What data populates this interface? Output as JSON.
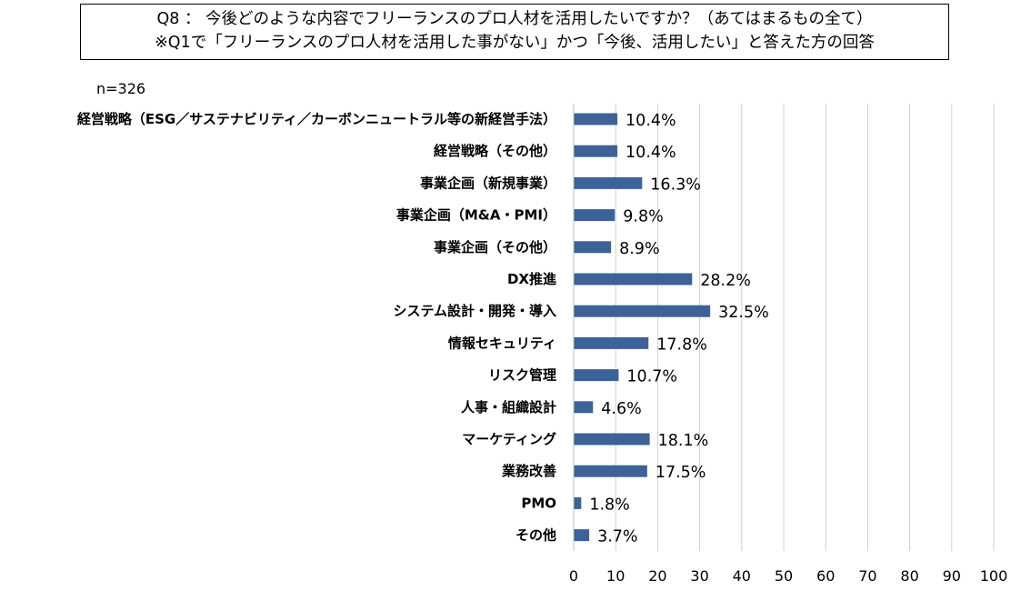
{
  "title": {
    "line1": "Q8 ： 今後どのような内容でフリーランスのプロ人材を活用したいですか？（あてはまるもの全て）",
    "line2": "※Q1で「フリーランスのプロ人材を活用した事がない」かつ「今後、活用したい」と答えた方の回答"
  },
  "sample_size": "n=326",
  "chart_data": {
    "type": "bar",
    "orientation": "horizontal",
    "categories": [
      "経営戦略（ESG／サステナビリティ／カーボンニュートラル等の新経営手法）",
      "経営戦略（その他）",
      "事業企画（新規事業）",
      "事業企画（M&A・PMI）",
      "事業企画（その他）",
      "DX推進",
      "システム設計・開発・導入",
      "情報セキュリティ",
      "リスク管理",
      "人事・組織設計",
      "マーケティング",
      "業務改善",
      "PMO",
      "その他"
    ],
    "values": [
      10.4,
      10.4,
      16.3,
      9.8,
      8.9,
      28.2,
      32.5,
      17.8,
      10.7,
      4.6,
      18.1,
      17.5,
      1.8,
      3.7
    ],
    "value_labels": [
      "10.4%",
      "10.4%",
      "16.3%",
      "9.8%",
      "8.9%",
      "28.2%",
      "32.5%",
      "17.8%",
      "10.7%",
      "4.6%",
      "18.1%",
      "17.5%",
      "1.8%",
      "3.7%"
    ],
    "xlim": [
      0,
      100
    ],
    "xticks": [
      0,
      10,
      20,
      30,
      40,
      50,
      60,
      70,
      80,
      90,
      100
    ],
    "grid": true,
    "bar_color": "#3d6396",
    "grid_color": "#d0d0d0"
  }
}
